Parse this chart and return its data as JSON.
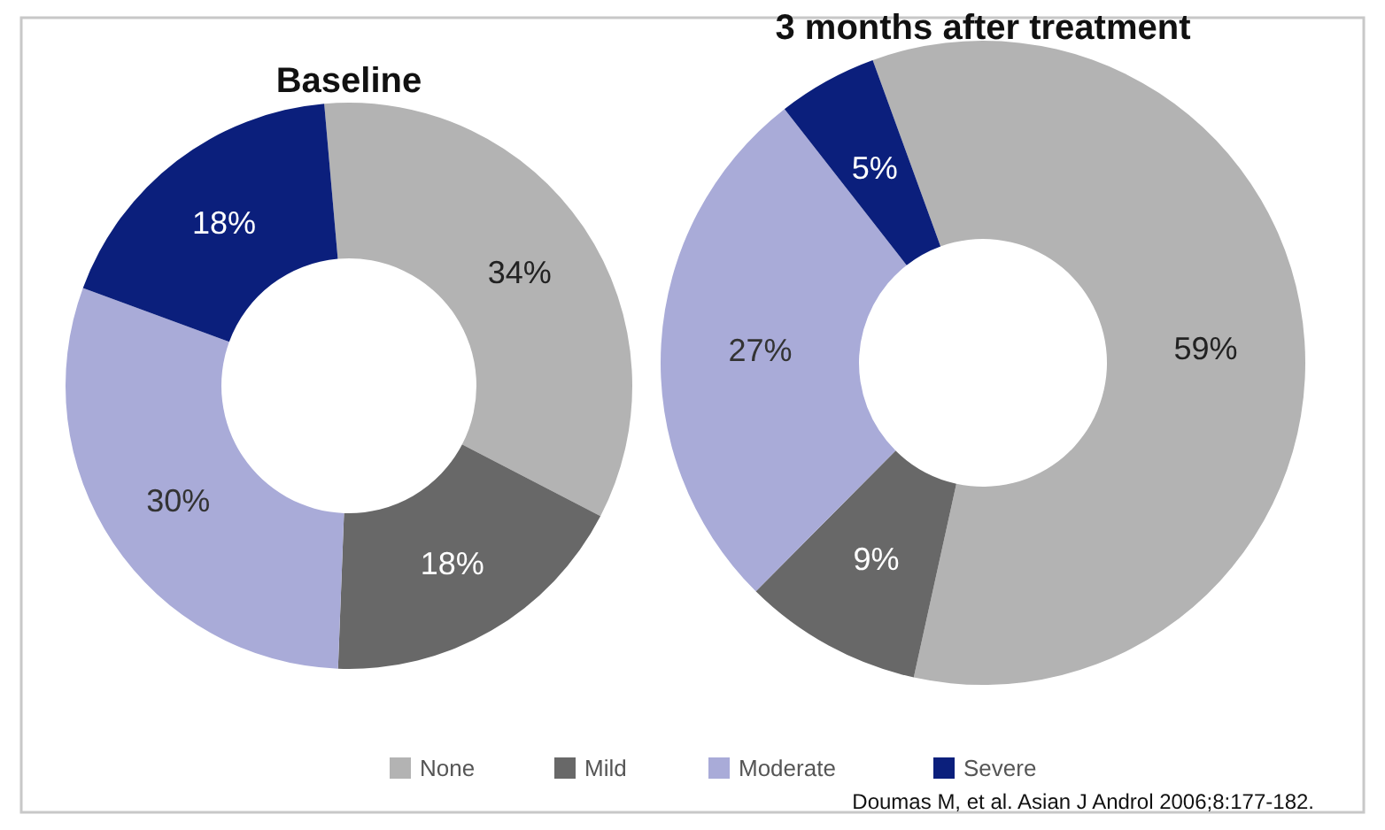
{
  "chart_data": [
    {
      "type": "donut",
      "title": "Baseline",
      "categories": [
        "None",
        "Mild",
        "Moderate",
        "Severe"
      ],
      "values": [
        34,
        18,
        30,
        18
      ],
      "value_labels": [
        "34%",
        "18%",
        "30%",
        "18%"
      ],
      "colors": [
        "#b3b3b3",
        "#686868",
        "#a9abd8",
        "#0b1f7c"
      ],
      "legend": "bottom"
    },
    {
      "type": "donut",
      "title": "3 months after treatment",
      "categories": [
        null,
        null,
        null,
        null
      ],
      "values": [
        59,
        9,
        27,
        5
      ],
      "value_labels": [
        "59%",
        "9%",
        "27%",
        "5%"
      ],
      "colors": [
        "#b3b3b3",
        "#686868",
        "#a9abd8",
        "#0b1f7c"
      ],
      "annotations": [
        "Doumas M, et al. Asian J Androl 2006;8:177-182."
      ]
    }
  ]
}
